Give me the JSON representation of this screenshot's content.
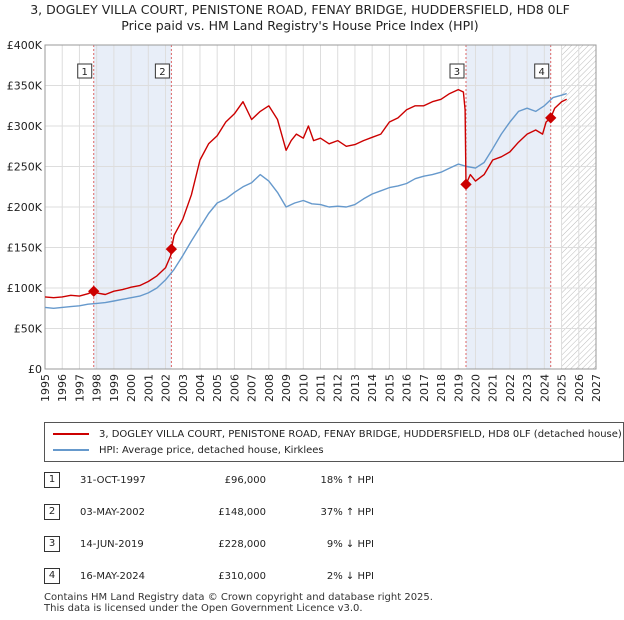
{
  "title_line1": "3, DOGLEY VILLA COURT, PENISTONE ROAD, FENAY BRIDGE, HUDDERSFIELD, HD8 0LF",
  "title_line2": "Price paid vs. HM Land Registry's House Price Index (HPI)",
  "colors": {
    "property": "#cc0000",
    "hpi": "#6699cc",
    "shade": "#e8eef8",
    "grid": "#dddddd",
    "hatch": "#bbbbbb"
  },
  "legend": {
    "property_label": "3, DOGLEY VILLA COURT, PENISTONE ROAD, FENAY BRIDGE, HUDDERSFIELD, HD8 0LF (detached house)",
    "hpi_label": "HPI: Average price, detached house, Kirklees"
  },
  "transactions": [
    {
      "num": "1",
      "date": "31-OCT-1997",
      "price": "£96,000",
      "hpi_diff": "18% ↑ HPI"
    },
    {
      "num": "2",
      "date": "03-MAY-2002",
      "price": "£148,000",
      "hpi_diff": "37% ↑ HPI"
    },
    {
      "num": "3",
      "date": "14-JUN-2019",
      "price": "£228,000",
      "hpi_diff": "9% ↓ HPI"
    },
    {
      "num": "4",
      "date": "16-MAY-2024",
      "price": "£310,000",
      "hpi_diff": "2% ↓ HPI"
    }
  ],
  "footer_line1": "Contains HM Land Registry data © Crown copyright and database right 2025.",
  "footer_line2": "This data is licensed under the Open Government Licence v3.0.",
  "chart_data": {
    "type": "line",
    "title": "3, DOGLEY VILLA COURT, PENISTONE ROAD, FENAY BRIDGE, HUDDERSFIELD, HD8 0LF",
    "subtitle": "Price paid vs. HM Land Registry's House Price Index (HPI)",
    "xlabel": "",
    "ylabel": "",
    "xlim": [
      1995,
      2027
    ],
    "ylim": [
      0,
      400000
    ],
    "x_ticks": [
      "1995",
      "1996",
      "1997",
      "1998",
      "1999",
      "2000",
      "2001",
      "2002",
      "2003",
      "2004",
      "2005",
      "2006",
      "2007",
      "2008",
      "2009",
      "2010",
      "2011",
      "2012",
      "2013",
      "2014",
      "2015",
      "2016",
      "2017",
      "2018",
      "2019",
      "2020",
      "2021",
      "2022",
      "2023",
      "2024",
      "2025",
      "2026",
      "2027"
    ],
    "y_ticks": [
      {
        "value": 0,
        "label": "£0"
      },
      {
        "value": 50000,
        "label": "£50K"
      },
      {
        "value": 100000,
        "label": "£100K"
      },
      {
        "value": 150000,
        "label": "£150K"
      },
      {
        "value": 200000,
        "label": "£200K"
      },
      {
        "value": 250000,
        "label": "£250K"
      },
      {
        "value": 300000,
        "label": "£300K"
      },
      {
        "value": 350000,
        "label": "£350K"
      },
      {
        "value": 400000,
        "label": "£400K"
      }
    ],
    "grid": true,
    "legend_position": "below",
    "shaded_periods": [
      [
        1997.83,
        2002.34
      ],
      [
        2019.45,
        2024.37
      ]
    ],
    "forecast_start": 2025.0,
    "series": [
      {
        "name": "3, DOGLEY VILLA COURT, PENISTONE ROAD, FENAY BRIDGE, HUDDERSFIELD, HD8 0LF (detached house)",
        "x": [
          1995.0,
          1995.5,
          1996.0,
          1996.5,
          1997.0,
          1997.5,
          1997.83,
          1998.0,
          1998.5,
          1999.0,
          1999.5,
          2000.0,
          2000.5,
          2001.0,
          2001.5,
          2002.0,
          2002.3,
          2002.34,
          2002.5,
          2003.0,
          2003.5,
          2004.0,
          2004.5,
          2005.0,
          2005.5,
          2006.0,
          2006.5,
          2007.0,
          2007.5,
          2008.0,
          2008.5,
          2009.0,
          2009.3,
          2009.6,
          2010.0,
          2010.3,
          2010.6,
          2011.0,
          2011.5,
          2012.0,
          2012.5,
          2013.0,
          2013.5,
          2014.0,
          2014.5,
          2015.0,
          2015.5,
          2016.0,
          2016.5,
          2017.0,
          2017.5,
          2018.0,
          2018.5,
          2019.0,
          2019.3,
          2019.4,
          2019.45,
          2019.7,
          2020.0,
          2020.5,
          2021.0,
          2021.5,
          2022.0,
          2022.5,
          2023.0,
          2023.5,
          2023.9,
          2024.1,
          2024.37,
          2024.6,
          2025.0,
          2025.3
        ],
        "y": [
          89000,
          88000,
          89000,
          91000,
          90000,
          93000,
          96000,
          94000,
          92000,
          96000,
          98000,
          101000,
          103000,
          108000,
          115000,
          125000,
          140000,
          148000,
          165000,
          185000,
          215000,
          258000,
          278000,
          288000,
          305000,
          315000,
          330000,
          308000,
          318000,
          325000,
          308000,
          270000,
          282000,
          290000,
          285000,
          300000,
          282000,
          285000,
          278000,
          282000,
          275000,
          277000,
          282000,
          286000,
          290000,
          305000,
          310000,
          320000,
          325000,
          325000,
          330000,
          333000,
          340000,
          345000,
          342000,
          320000,
          228000,
          240000,
          232000,
          240000,
          258000,
          262000,
          268000,
          280000,
          290000,
          295000,
          290000,
          305000,
          310000,
          322000,
          330000,
          333000
        ]
      },
      {
        "name": "HPI: Average price, detached house, Kirklees",
        "x": [
          1995.0,
          1995.5,
          1996.0,
          1996.5,
          1997.0,
          1997.5,
          1998.0,
          1998.5,
          1999.0,
          1999.5,
          2000.0,
          2000.5,
          2001.0,
          2001.5,
          2002.0,
          2002.5,
          2003.0,
          2003.5,
          2004.0,
          2004.5,
          2005.0,
          2005.5,
          2006.0,
          2006.5,
          2007.0,
          2007.5,
          2008.0,
          2008.5,
          2009.0,
          2009.5,
          2010.0,
          2010.5,
          2011.0,
          2011.5,
          2012.0,
          2012.5,
          2013.0,
          2013.5,
          2014.0,
          2014.5,
          2015.0,
          2015.5,
          2016.0,
          2016.5,
          2017.0,
          2017.5,
          2018.0,
          2018.5,
          2019.0,
          2019.5,
          2020.0,
          2020.5,
          2021.0,
          2021.5,
          2022.0,
          2022.5,
          2023.0,
          2023.5,
          2024.0,
          2024.5,
          2025.0,
          2025.3
        ],
        "y": [
          76000,
          75000,
          76000,
          77000,
          78000,
          80000,
          81000,
          82000,
          84000,
          86000,
          88000,
          90000,
          94000,
          100000,
          110000,
          123000,
          140000,
          158000,
          175000,
          192000,
          205000,
          210000,
          218000,
          225000,
          230000,
          240000,
          232000,
          218000,
          200000,
          205000,
          208000,
          204000,
          203000,
          200000,
          201000,
          200000,
          203000,
          210000,
          216000,
          220000,
          224000,
          226000,
          229000,
          235000,
          238000,
          240000,
          243000,
          248000,
          253000,
          250000,
          248000,
          255000,
          272000,
          290000,
          305000,
          318000,
          322000,
          318000,
          325000,
          335000,
          338000,
          340000
        ]
      }
    ],
    "transactions": [
      {
        "label": "1",
        "x": 1997.83,
        "y": 96000
      },
      {
        "label": "2",
        "x": 2002.34,
        "y": 148000
      },
      {
        "label": "3",
        "x": 2019.45,
        "y": 228000
      },
      {
        "label": "4",
        "x": 2024.37,
        "y": 310000
      }
    ]
  }
}
